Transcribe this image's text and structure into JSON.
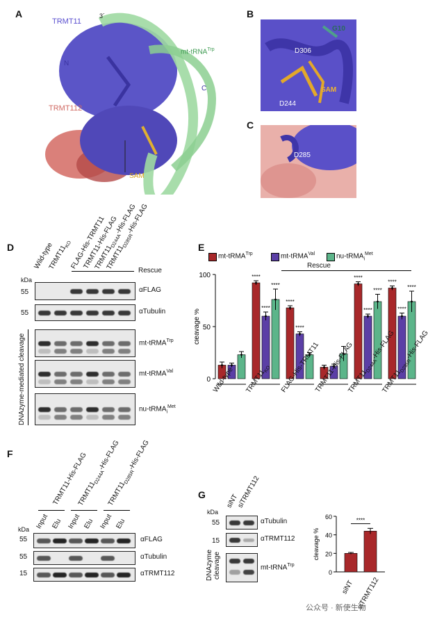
{
  "panels": {
    "A": "A",
    "B": "B",
    "C": "C",
    "D": "D",
    "E": "E",
    "F": "F",
    "G": "G"
  },
  "panelA": {
    "trmt11": "TRMT11",
    "three_prime": "3´",
    "n_term": "N",
    "mt_trna": "mt-tRNA",
    "mt_trna_sup": "Trp",
    "c_term": "C",
    "trmt112": "TRMT112",
    "sam": "SAM"
  },
  "panelB": {
    "g10": "G10",
    "d306": "D306",
    "d244": "D244",
    "sam": "SAM"
  },
  "panelC": {
    "d285": "D285"
  },
  "panelD": {
    "lanes": [
      "Wild-type",
      "TRMT11",
      "FLAG-His-TRMT11",
      "TRMT11-His-FLAG",
      "TRMT11",
      "TRMT11"
    ],
    "lane_subs": [
      "",
      "KO",
      "",
      "",
      "D244A",
      "D285R"
    ],
    "lane_suffix": [
      "",
      "",
      "",
      "",
      "-His-FLAG",
      "-His-FLAG"
    ],
    "rescue": "Rescue",
    "kda": "kDa",
    "mw": [
      "55",
      "55"
    ],
    "blots": [
      "αFLAG",
      "αTubulin",
      "mt-tRMA",
      "mt-tRMA",
      "nu-tRMA"
    ],
    "blot_sups": [
      "",
      "",
      "Trp",
      "Val",
      "Met"
    ],
    "blot_subs": [
      "",
      "",
      "",
      "",
      "i"
    ],
    "side_label": "DNAzyme-mediated cleavage"
  },
  "panelE": {
    "ylabel": "cleavage %",
    "yticks": [
      "0",
      "50",
      "100"
    ],
    "rescue": "Rescue",
    "legend": [
      {
        "label": "mt-tRMA",
        "sup": "Trp",
        "sub": "",
        "color": "#a8282a"
      },
      {
        "label": "mt-tRMA",
        "sup": "Val",
        "sub": "",
        "color": "#5b3fa6"
      },
      {
        "label": "nu-tRMA",
        "sup": "Met",
        "sub": "i",
        "color": "#5cb58a"
      }
    ],
    "groups": [
      "Wild-type",
      "TRMT11",
      "FLAG-His-TRMT11",
      "TRMT11-His-FLAG",
      "TRMT11",
      "TRMT11"
    ],
    "group_subs": [
      "",
      "KO",
      "",
      "",
      "D244A",
      "D285R"
    ],
    "group_suffix": [
      "",
      "",
      "",
      "",
      "-His-FLAG",
      "-His-FLAG"
    ],
    "sig": "****"
  },
  "chart_data": {
    "type": "bar",
    "categories": [
      "Wild-type",
      "TRMT11KO",
      "FLAG-His-TRMT11",
      "TRMT11-His-FLAG",
      "TRMT11D244A-His-FLAG",
      "TRMT11D285R-His-FLAG"
    ],
    "series": [
      {
        "name": "mt-tRMATrp",
        "values": [
          13,
          92,
          68,
          11,
          91,
          87
        ],
        "errors": [
          3,
          2,
          2,
          2,
          2,
          2
        ],
        "sig": [
          false,
          true,
          true,
          false,
          true,
          true
        ]
      },
      {
        "name": "mt-tRMAVal",
        "values": [
          13,
          60,
          43,
          12,
          60,
          60
        ],
        "errors": [
          2,
          4,
          2,
          2,
          2,
          3
        ],
        "sig": [
          false,
          true,
          true,
          false,
          true,
          true
        ]
      },
      {
        "name": "nu-tRMAiMet",
        "values": [
          23,
          76,
          23,
          24,
          74,
          74
        ],
        "errors": [
          3,
          10,
          2,
          7,
          7,
          10
        ],
        "sig": [
          false,
          true,
          false,
          false,
          true,
          true
        ]
      }
    ],
    "ylabel": "cleavage %",
    "ylim": [
      0,
      100
    ],
    "yticks": [
      0,
      50,
      100
    ]
  },
  "panelF": {
    "lanes": [
      "TRMT11-His-FLAG",
      "TRMT11",
      "TRMT11"
    ],
    "lane_subs": [
      "",
      "D244A",
      "D285R"
    ],
    "lane_suffix": [
      "",
      "-His-FLAG",
      "-His-FLAG"
    ],
    "sub_lanes": [
      "Input",
      "Elu",
      "Input",
      "Elu",
      "Input",
      "Elu"
    ],
    "kda": "kDa",
    "mw": [
      "55",
      "55",
      "15"
    ],
    "blots": [
      "αFLAG",
      "αTubulin",
      "αTRMT112"
    ]
  },
  "panelG": {
    "lanes": [
      "siNT",
      "siTRMT112"
    ],
    "kda": "kDa",
    "mw": [
      "55",
      "15"
    ],
    "blots": [
      "αTubulin",
      "αTRMT112",
      "mt-tRNA"
    ],
    "blot_sups": [
      "",
      "",
      "Trp"
    ],
    "side_label_1": "DNAzyme",
    "side_label_2": "cleavage",
    "ylabel": "cleavage %",
    "yticks": [
      "0",
      "20",
      "40",
      "60"
    ],
    "sig": "****",
    "bars": [
      "siNT",
      "siTRMT112"
    ]
  },
  "chart_data_g": {
    "type": "bar",
    "categories": [
      "siNT",
      "siTRMT112"
    ],
    "values": [
      20,
      44
    ],
    "errors": [
      1,
      3
    ],
    "ylim": [
      0,
      60
    ]
  },
  "watermark": "公众号 · 新使生物"
}
